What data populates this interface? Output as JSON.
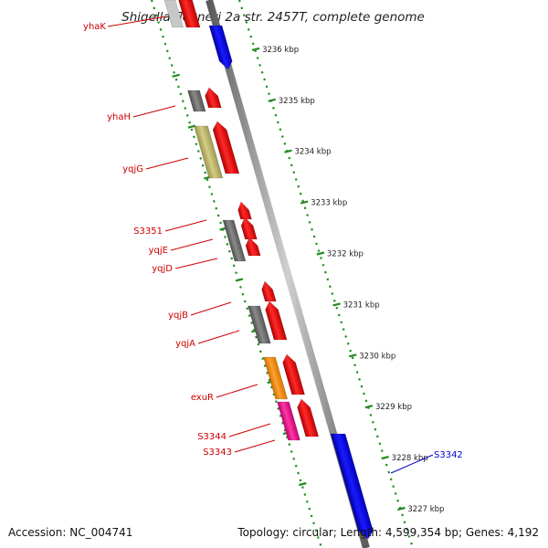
{
  "title": "Shigella flexneri 2a str. 2457T, complete genome",
  "footer": {
    "accession": "Accession: NC_004741",
    "summary": "Topology: circular; Length: 4,599,354 bp; Genes: 4,192"
  },
  "colors": {
    "forward": "#ff0000",
    "reverse": "#0000ff",
    "tick": "#228b22",
    "backbone": "#8a8a8a",
    "gray_cds": "#6e6e6e",
    "olive_cds": "#bdb76b",
    "orange_cds": "#ff8c00",
    "magenta_cds": "#ff1493",
    "label_red": "#d00000",
    "label_blue": "#0000cc"
  },
  "scale": {
    "unit": "kbp",
    "ticks": [
      {
        "value": 3227,
        "label": "3227 kbp"
      },
      {
        "value": 3228,
        "label": "3228 kbp"
      },
      {
        "value": 3229,
        "label": "3229 kbp"
      },
      {
        "value": 3230,
        "label": "3230 kbp"
      },
      {
        "value": 3231,
        "label": "3231 kbp"
      },
      {
        "value": 3232,
        "label": "3232 kbp"
      },
      {
        "value": 3233,
        "label": "3233 kbp"
      },
      {
        "value": 3234,
        "label": "3234 kbp"
      },
      {
        "value": 3235,
        "label": "3235 kbp"
      },
      {
        "value": 3236,
        "label": "3236 kbp"
      }
    ]
  },
  "genes": [
    {
      "name": "yhaK",
      "color": "label_red"
    },
    {
      "name": "yhaH",
      "color": "label_red"
    },
    {
      "name": "yqjG",
      "color": "label_red"
    },
    {
      "name": "S3351",
      "color": "label_red"
    },
    {
      "name": "yqjE",
      "color": "label_red"
    },
    {
      "name": "yqjD",
      "color": "label_red"
    },
    {
      "name": "yqjB",
      "color": "label_red"
    },
    {
      "name": "yqjA",
      "color": "label_red"
    },
    {
      "name": "exuR",
      "color": "label_red"
    },
    {
      "name": "S3344",
      "color": "label_red"
    },
    {
      "name": "S3343",
      "color": "label_red"
    },
    {
      "name": "S3342",
      "color": "label_blue"
    }
  ]
}
